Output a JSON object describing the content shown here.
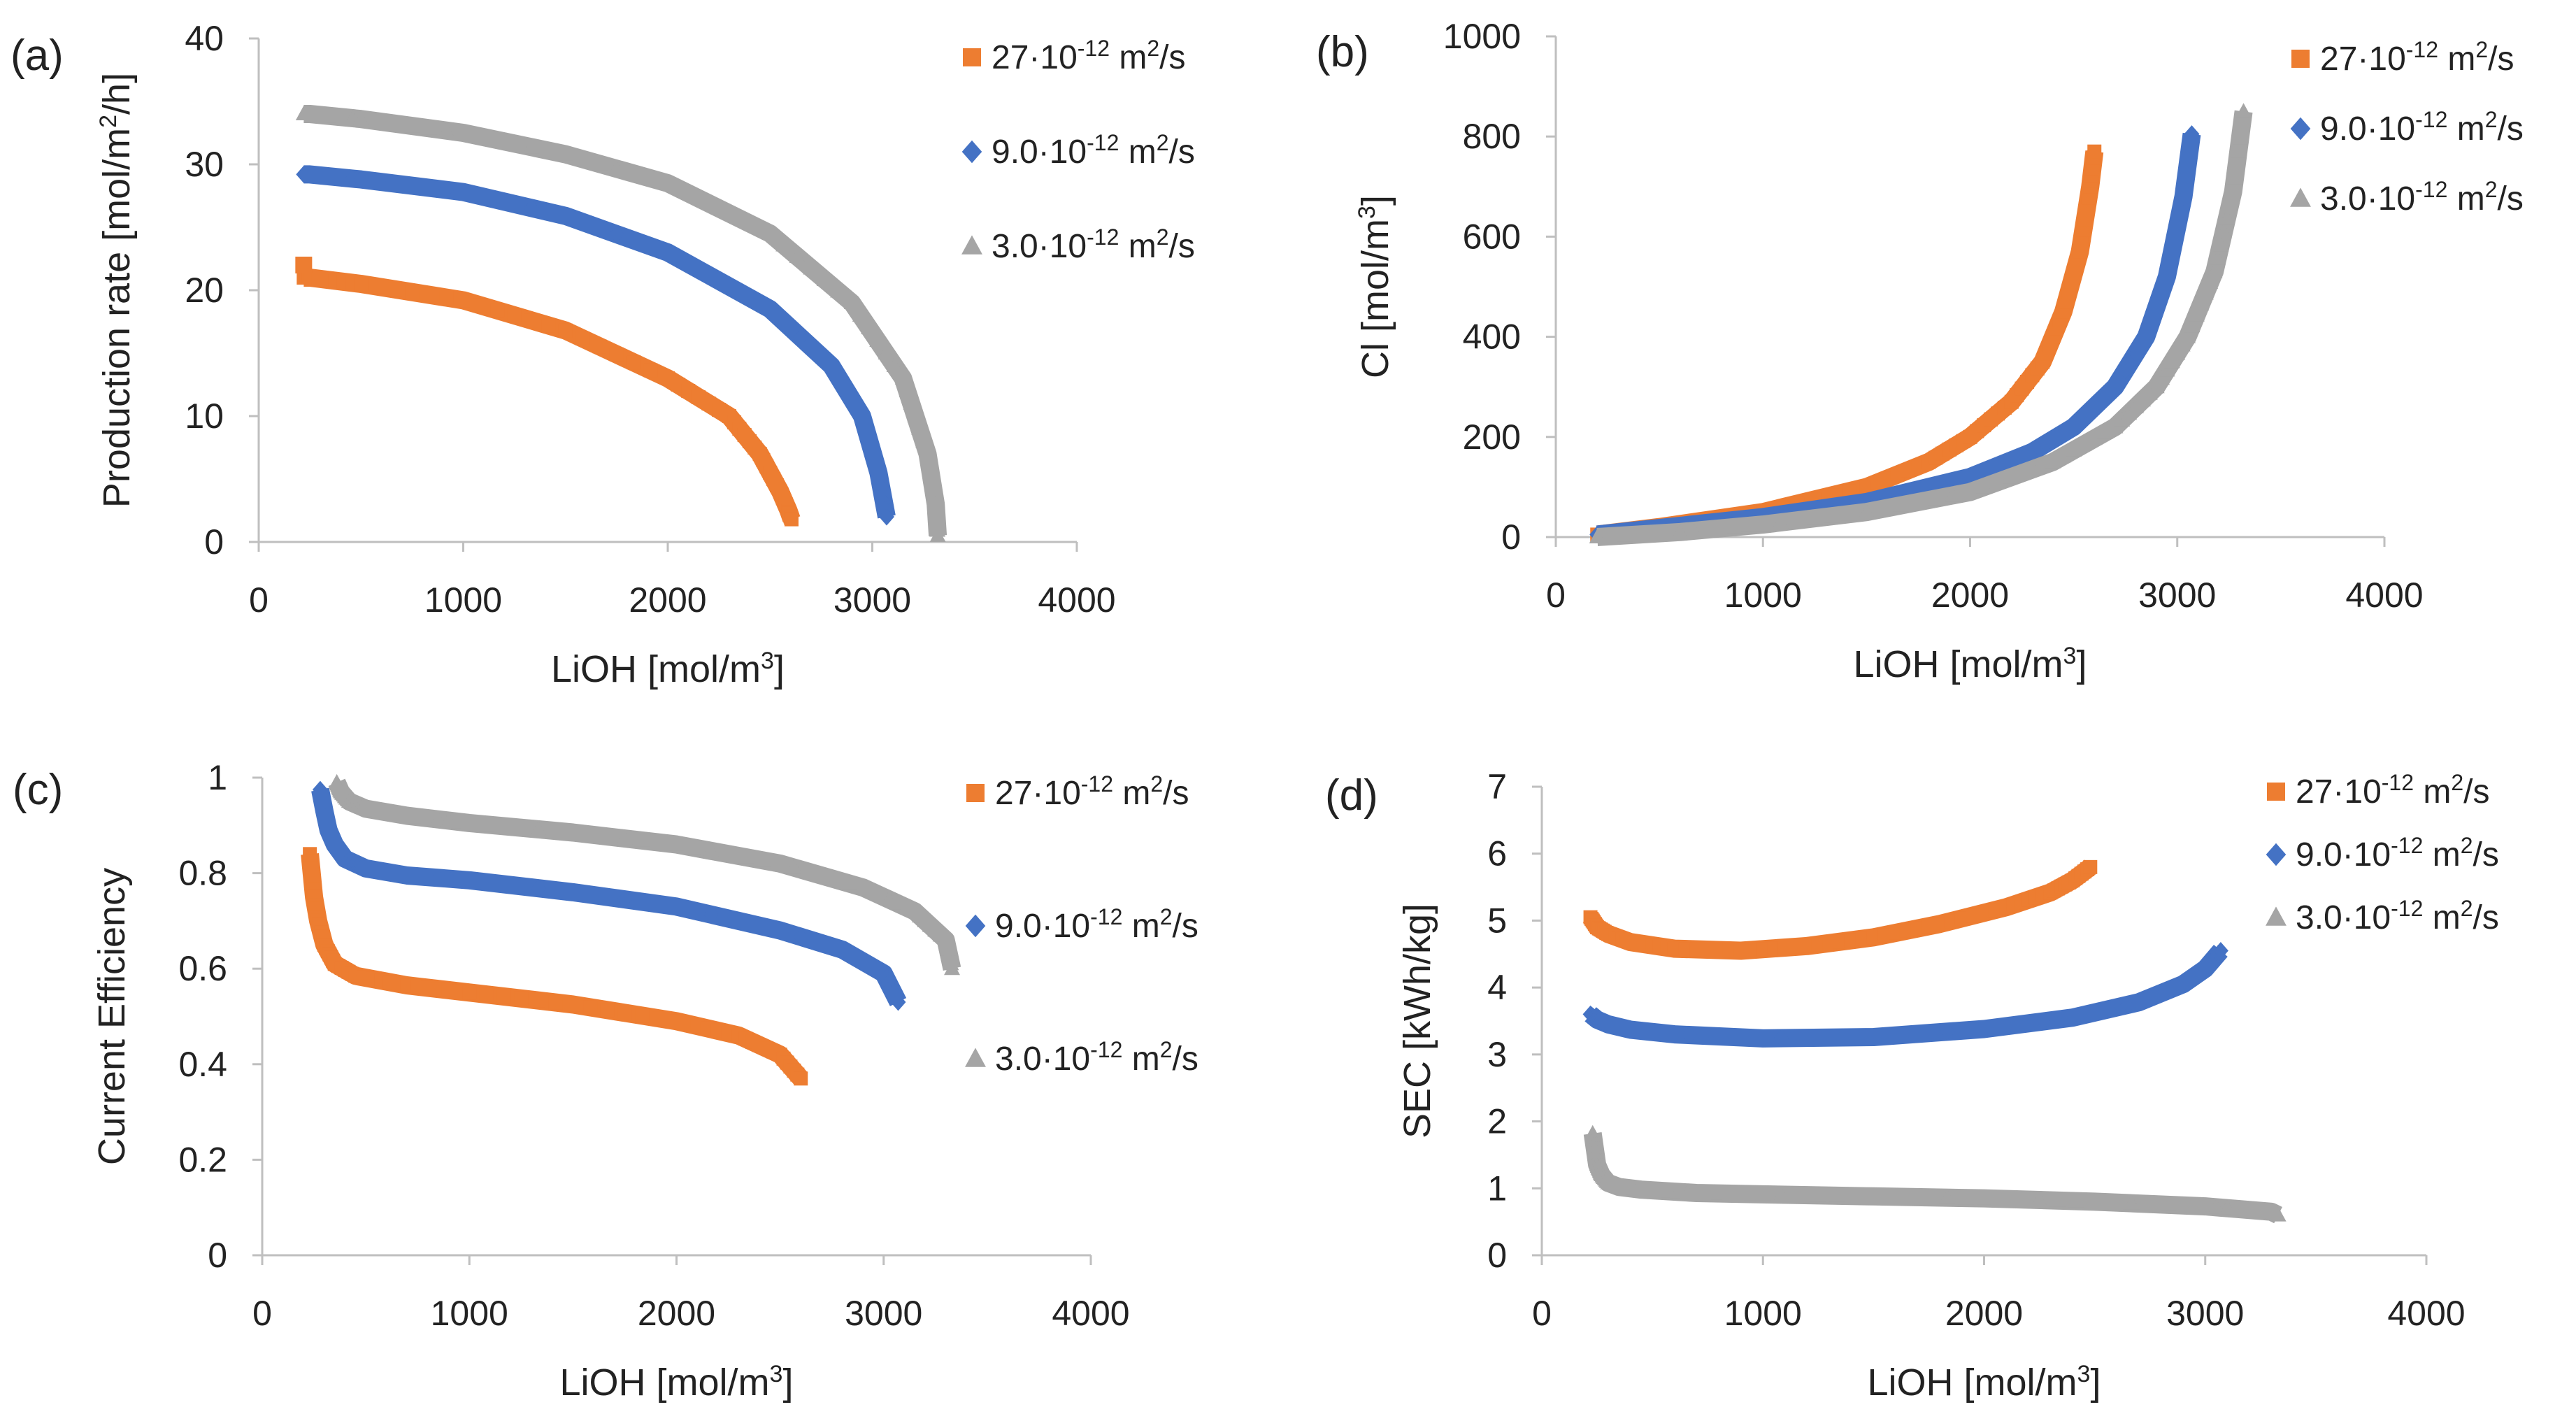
{
  "figure": {
    "series_styles": [
      {
        "color": "#ED7D31",
        "marker": "square",
        "label": {
          "base": "27·10",
          "exp": "-12",
          "unit": " m",
          "unit_exp": "2",
          "tail": "/s"
        }
      },
      {
        "color": "#4472C4",
        "marker": "diamond",
        "label": {
          "base": "9.0·10",
          "exp": "-12",
          "unit": " m",
          "unit_exp": "2",
          "tail": "/s"
        }
      },
      {
        "color": "#A5A5A5",
        "marker": "triangle",
        "label": {
          "base": "3.0·10",
          "exp": "-12",
          "unit": " m",
          "unit_exp": "2",
          "tail": "/s"
        }
      }
    ]
  },
  "chart_data": [
    {
      "panel": "(a)",
      "type": "scatter",
      "xlabel": {
        "text": "LiOH [mol/m",
        "sup": "3",
        "tail": "]"
      },
      "ylabel": {
        "text": "Production rate [mol/m",
        "sup": "2",
        "tail": "/h]"
      },
      "xlim": [
        0,
        4000
      ],
      "ylim": [
        0,
        40
      ],
      "xticks": [
        "0",
        "1000",
        "2000",
        "3000",
        "4000"
      ],
      "yticks": [
        "0",
        "10",
        "20",
        "30",
        "40"
      ],
      "series": [
        {
          "name": "27·10-12 m2/s",
          "x": [
            220,
            250,
            500,
            1000,
            1500,
            2000,
            2300,
            2450,
            2550,
            2590,
            2605
          ],
          "y": [
            21.0,
            21.0,
            20.5,
            19.2,
            16.8,
            13.0,
            10.0,
            7.0,
            4.0,
            2.5,
            1.8
          ]
        },
        {
          "name": "9.0·10-12 m2/s",
          "x": [
            220,
            250,
            500,
            1000,
            1500,
            2000,
            2500,
            2800,
            2950,
            3030,
            3070
          ],
          "y": [
            29.2,
            29.2,
            28.8,
            27.8,
            25.9,
            23.0,
            18.5,
            14.0,
            10.0,
            5.5,
            2.0
          ]
        },
        {
          "name": "3.0·10-12 m2/s",
          "x": [
            220,
            250,
            500,
            1000,
            1500,
            2000,
            2500,
            2900,
            3150,
            3270,
            3310,
            3320
          ],
          "y": [
            34.0,
            34.0,
            33.6,
            32.5,
            30.8,
            28.5,
            24.5,
            19.0,
            13.0,
            7.0,
            3.0,
            0.5
          ]
        }
      ],
      "first_points": [
        22.0,
        null,
        null
      ],
      "legend": "top-right"
    },
    {
      "panel": "(b)",
      "type": "scatter",
      "xlabel": {
        "text": "LiOH [mol/m",
        "sup": "3",
        "tail": "]"
      },
      "ylabel": {
        "text": "Cl [mol/m",
        "sup": "3",
        "tail": "]"
      },
      "xlim": [
        0,
        4000
      ],
      "ylim": [
        0,
        1000
      ],
      "xticks": [
        "0",
        "1000",
        "2000",
        "3000",
        "4000"
      ],
      "yticks": [
        "0",
        "200",
        "400",
        "600",
        "800",
        "1000"
      ],
      "series": [
        {
          "name": "27·10-12 m2/s",
          "x": [
            200,
            500,
            1000,
            1500,
            1800,
            2000,
            2200,
            2350,
            2450,
            2530,
            2580,
            2600
          ],
          "y": [
            5,
            20,
            50,
            100,
            150,
            200,
            270,
            350,
            450,
            570,
            700,
            770
          ]
        },
        {
          "name": "9.0·10-12 m2/s",
          "x": [
            200,
            500,
            1000,
            1500,
            2000,
            2300,
            2500,
            2700,
            2850,
            2950,
            3030,
            3070
          ],
          "y": [
            5,
            18,
            40,
            70,
            120,
            170,
            220,
            300,
            400,
            520,
            680,
            805
          ]
        },
        {
          "name": "3.0·10-12 m2/s",
          "x": [
            200,
            600,
            1000,
            1500,
            2000,
            2400,
            2700,
            2900,
            3050,
            3180,
            3270,
            3320
          ],
          "y": [
            0,
            10,
            25,
            50,
            90,
            150,
            220,
            300,
            400,
            530,
            690,
            850
          ]
        }
      ],
      "legend": "top-right"
    },
    {
      "panel": "(c)",
      "type": "scatter",
      "xlabel": {
        "text": "LiOH [mol/m",
        "sup": "3",
        "tail": "]"
      },
      "ylabel": {
        "text": "Current Efficiency",
        "sup": "",
        "tail": ""
      },
      "xlim": [
        0,
        4000
      ],
      "ylim": [
        0,
        1
      ],
      "xticks": [
        "0",
        "1000",
        "2000",
        "3000",
        "4000"
      ],
      "yticks": [
        "0",
        "0.2",
        "0.4",
        "0.6",
        "0.8",
        "1"
      ],
      "series": [
        {
          "name": "27·10-12 m2/s",
          "x": [
            230,
            250,
            270,
            300,
            350,
            450,
            700,
            1000,
            1500,
            2000,
            2300,
            2500,
            2600
          ],
          "y": [
            0.84,
            0.75,
            0.7,
            0.65,
            0.61,
            0.585,
            0.565,
            0.55,
            0.525,
            0.49,
            0.46,
            0.42,
            0.37
          ]
        },
        {
          "name": "9.0·10-12 m2/s",
          "x": [
            280,
            300,
            320,
            350,
            400,
            500,
            700,
            1000,
            1500,
            2000,
            2500,
            2800,
            3000,
            3070
          ],
          "y": [
            0.975,
            0.93,
            0.89,
            0.86,
            0.83,
            0.81,
            0.795,
            0.785,
            0.76,
            0.73,
            0.68,
            0.64,
            0.59,
            0.53
          ]
        },
        {
          "name": "3.0·10-12 m2/s",
          "x": [
            360,
            380,
            420,
            500,
            700,
            1000,
            1500,
            2000,
            2500,
            2900,
            3150,
            3300,
            3330
          ],
          "y": [
            0.99,
            0.97,
            0.95,
            0.935,
            0.92,
            0.905,
            0.885,
            0.86,
            0.82,
            0.77,
            0.72,
            0.66,
            0.6
          ]
        }
      ],
      "legend": "top-right"
    },
    {
      "panel": "(d)",
      "type": "scatter",
      "xlabel": {
        "text": "LiOH [mol/m",
        "sup": "3",
        "tail": "]"
      },
      "ylabel": {
        "text": "SEC [kWh/kg]",
        "sup": "",
        "tail": ""
      },
      "xlim": [
        0,
        4000
      ],
      "ylim": [
        0,
        7
      ],
      "xticks": [
        "0",
        "1000",
        "2000",
        "3000",
        "4000"
      ],
      "yticks": [
        "0",
        "1",
        "2",
        "3",
        "4",
        "5",
        "6",
        "7"
      ],
      "series": [
        {
          "name": "27·10-12 m2/s",
          "x": [
            220,
            250,
            300,
            400,
            600,
            900,
            1200,
            1500,
            1800,
            2100,
            2300,
            2400,
            2480
          ],
          "y": [
            5.05,
            4.9,
            4.8,
            4.68,
            4.58,
            4.55,
            4.62,
            4.75,
            4.95,
            5.2,
            5.42,
            5.6,
            5.8
          ]
        },
        {
          "name": "9.0·10-12 m2/s",
          "x": [
            220,
            250,
            300,
            400,
            600,
            1000,
            1500,
            2000,
            2400,
            2700,
            2900,
            3000,
            3070
          ],
          "y": [
            3.6,
            3.52,
            3.45,
            3.37,
            3.3,
            3.24,
            3.26,
            3.38,
            3.55,
            3.78,
            4.05,
            4.28,
            4.55
          ]
        },
        {
          "name": "3.0·10-12 m2/s",
          "x": [
            230,
            250,
            270,
            300,
            350,
            450,
            700,
            1000,
            1500,
            2000,
            2500,
            3000,
            3300,
            3330
          ],
          "y": [
            1.82,
            1.35,
            1.2,
            1.08,
            1.02,
            0.98,
            0.93,
            0.91,
            0.88,
            0.85,
            0.8,
            0.73,
            0.65,
            0.6
          ]
        }
      ],
      "legend": "top-right"
    }
  ]
}
